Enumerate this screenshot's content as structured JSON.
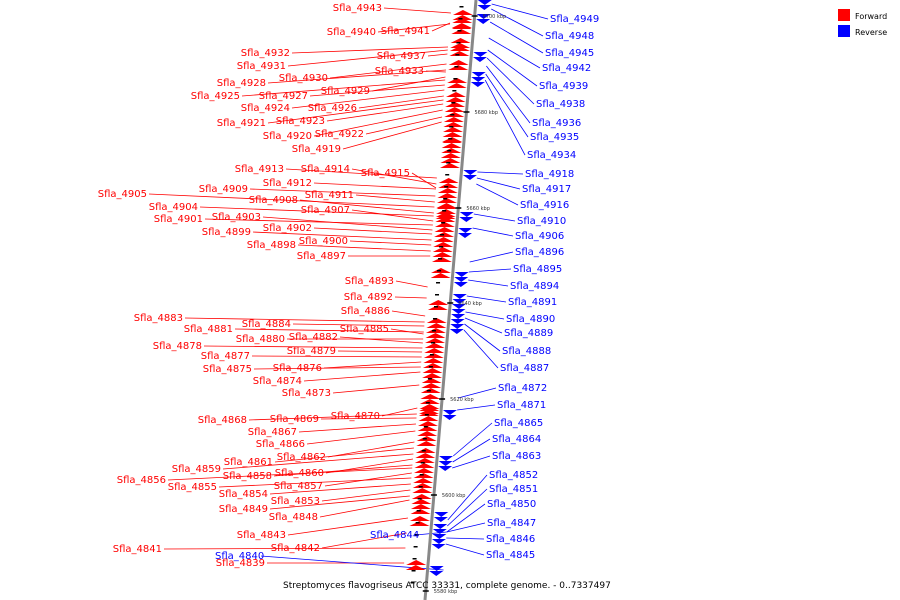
{
  "caption": "Streptomyces flavogriseus ATCC 33331, complete genome. - 0..7337497",
  "legend": [
    {
      "label": "Forward",
      "color": "#ff0000"
    },
    {
      "label": "Reverse",
      "color": "#0000ff"
    }
  ],
  "ticks": [
    "5700 kbp",
    "5680 kbp",
    "5660 kbp",
    "5640 kbp",
    "5620 kbp",
    "5600 kbp",
    "5580 kbp"
  ],
  "forward_genes": [
    "Sfla_4943",
    "Sfla_4940",
    "Sfla_4941",
    "Sfla_4937",
    "Sfla_4933",
    "Sfla_4932",
    "Sfla_4931",
    "Sfla_4930",
    "Sfla_4928",
    "Sfla_4929",
    "Sfla_4925",
    "Sfla_4927",
    "Sfla_4924",
    "Sfla_4926",
    "Sfla_4921",
    "Sfla_4923",
    "Sfla_4920",
    "Sfla_4922",
    "Sfla_4919",
    "Sfla_4913",
    "Sfla_4914",
    "Sfla_4915",
    "Sfla_4912",
    "Sfla_4909",
    "Sfla_4911",
    "Sfla_4905",
    "Sfla_4908",
    "Sfla_4904",
    "Sfla_4907",
    "Sfla_4901",
    "Sfla_4903",
    "Sfla_4902",
    "Sfla_4899",
    "Sfla_4900",
    "Sfla_4898",
    "Sfla_4897",
    "Sfla_4893",
    "Sfla_4892",
    "Sfla_4886",
    "Sfla_4883",
    "Sfla_4884",
    "Sfla_4881",
    "Sfla_4885",
    "Sfla_4880",
    "Sfla_4882",
    "Sfla_4878",
    "Sfla_4879",
    "Sfla_4877",
    "Sfla_4876",
    "Sfla_4875",
    "Sfla_4874",
    "Sfla_4873",
    "Sfla_4870",
    "Sfla_4868",
    "Sfla_4869",
    "Sfla_4867",
    "Sfla_4866",
    "Sfla_4862",
    "Sfla_4861",
    "Sfla_4859",
    "Sfla_4860",
    "Sfla_4858",
    "Sfla_4856",
    "Sfla_4857",
    "Sfla_4855",
    "Sfla_4854",
    "Sfla_4853",
    "Sfla_4849",
    "Sfla_4848",
    "Sfla_4843",
    "Sfla_4842",
    "Sfla_4841",
    "Sfla_4839"
  ],
  "reverse_genes": [
    "Sfla_4949",
    "Sfla_4948",
    "Sfla_4945",
    "Sfla_4942",
    "Sfla_4939",
    "Sfla_4938",
    "Sfla_4936",
    "Sfla_4935",
    "Sfla_4934",
    "Sfla_4918",
    "Sfla_4917",
    "Sfla_4916",
    "Sfla_4910",
    "Sfla_4906",
    "Sfla_4896",
    "Sfla_4895",
    "Sfla_4894",
    "Sfla_4891",
    "Sfla_4890",
    "Sfla_4889",
    "Sfla_4888",
    "Sfla_4887",
    "Sfla_4872",
    "Sfla_4871",
    "Sfla_4865",
    "Sfla_4864",
    "Sfla_4863",
    "Sfla_4852",
    "Sfla_4851",
    "Sfla_4850",
    "Sfla_4847",
    "Sfla_4846",
    "Sfla_4845",
    "Sfla_4844",
    "Sfla_4840"
  ]
}
